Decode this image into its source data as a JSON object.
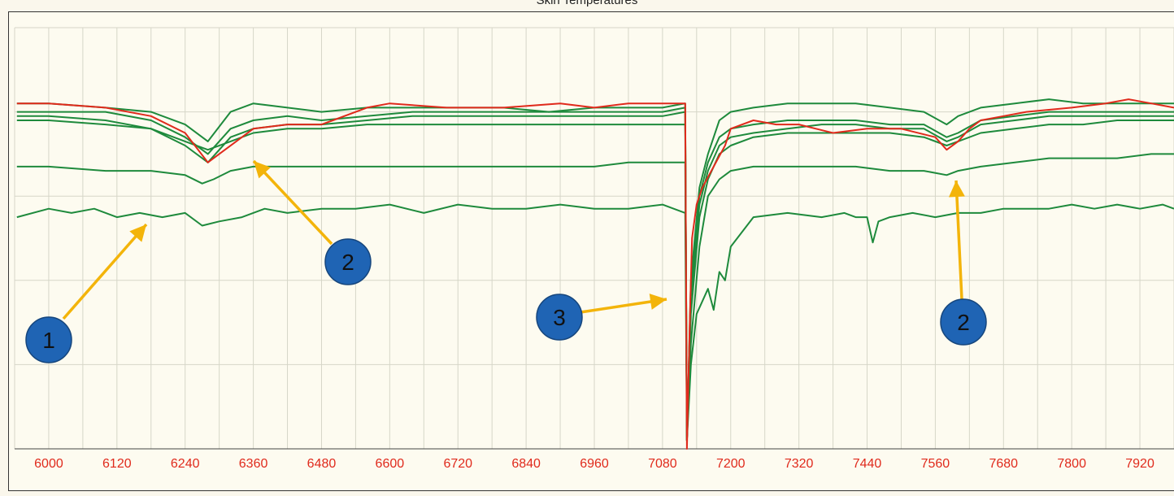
{
  "chart_data": {
    "type": "line",
    "title": "Skin Temperatures",
    "xlabel": "",
    "ylabel": "",
    "xlim": [
      5940,
      7980
    ],
    "ylim": [
      0,
      100
    ],
    "grid": true,
    "x_ticks": [
      6000,
      6120,
      6240,
      6360,
      6480,
      6600,
      6720,
      6840,
      6960,
      7080,
      7200,
      7320,
      7440,
      7560,
      7680,
      7800,
      7920
    ],
    "series": [
      {
        "color": "#e02a1c",
        "x": [
          5944,
          6000,
          6100,
          6180,
          6240,
          6280,
          6300,
          6360,
          6420,
          6480,
          6500,
          6560,
          6600,
          6700,
          6800,
          6900,
          6960,
          7020,
          7080,
          7120,
          7123,
          7128,
          7132,
          7140,
          7150,
          7170,
          7190,
          7200,
          7240,
          7280,
          7320,
          7380,
          7440,
          7500,
          7560,
          7580,
          7600,
          7620,
          7640,
          7680,
          7720,
          7800,
          7860,
          7900,
          7940,
          7980
        ],
        "y": [
          82,
          82,
          81,
          79,
          75,
          68,
          70,
          76,
          77,
          77,
          78,
          81,
          82,
          81,
          81,
          82,
          81,
          82,
          82,
          82,
          0,
          30,
          50,
          58,
          62,
          67,
          72,
          76,
          78,
          77,
          77,
          75,
          76,
          76,
          74,
          71,
          73,
          76,
          78,
          79,
          80,
          81,
          82,
          83,
          82,
          81
        ]
      },
      {
        "color": "#1e8a3c",
        "x": [
          5944,
          6000,
          6100,
          6180,
          6240,
          6280,
          6320,
          6360,
          6420,
          6480,
          6560,
          6640,
          6720,
          6800,
          6880,
          6960,
          7020,
          7080,
          7120,
          7123,
          7130,
          7145,
          7160,
          7180,
          7200,
          7240,
          7300,
          7360,
          7420,
          7480,
          7540,
          7580,
          7600,
          7640,
          7700,
          7760,
          7820,
          7880,
          7940,
          7980
        ],
        "y": [
          82,
          82,
          81,
          80,
          77,
          73,
          80,
          82,
          81,
          80,
          81,
          81,
          81,
          81,
          80,
          81,
          81,
          81,
          82,
          2,
          40,
          62,
          70,
          78,
          80,
          81,
          82,
          82,
          82,
          81,
          80,
          77,
          79,
          81,
          82,
          83,
          82,
          82,
          82,
          82
        ]
      },
      {
        "color": "#1e8a3c",
        "x": [
          5944,
          6000,
          6100,
          6180,
          6240,
          6280,
          6320,
          6360,
          6420,
          6480,
          6560,
          6640,
          6720,
          6800,
          6880,
          6960,
          7020,
          7080,
          7120,
          7123,
          7130,
          7145,
          7160,
          7180,
          7200,
          7240,
          7300,
          7360,
          7420,
          7480,
          7540,
          7580,
          7600,
          7640,
          7700,
          7760,
          7820,
          7880,
          7940,
          7980
        ],
        "y": [
          80,
          80,
          80,
          78,
          74,
          70,
          76,
          78,
          79,
          78,
          79,
          80,
          80,
          80,
          80,
          80,
          80,
          80,
          81,
          2,
          38,
          60,
          68,
          74,
          76,
          77,
          78,
          78,
          78,
          77,
          77,
          74,
          75,
          78,
          79,
          80,
          80,
          80,
          80,
          80
        ]
      },
      {
        "color": "#1e8a3c",
        "x": [
          5944,
          6000,
          6100,
          6180,
          6240,
          6280,
          6320,
          6360,
          6420,
          6480,
          6560,
          6640,
          6720,
          6800,
          6880,
          6960,
          7020,
          7080,
          7120,
          7123,
          7130,
          7145,
          7160,
          7180,
          7200,
          7240,
          7300,
          7360,
          7420,
          7480,
          7540,
          7580,
          7600,
          7640,
          7700,
          7760,
          7820,
          7880,
          7940,
          7980
        ],
        "y": [
          79,
          79,
          78,
          76,
          72,
          68,
          74,
          76,
          77,
          77,
          78,
          79,
          79,
          79,
          79,
          79,
          79,
          79,
          80,
          2,
          36,
          58,
          66,
          72,
          74,
          75,
          76,
          77,
          77,
          76,
          76,
          73,
          74,
          77,
          78,
          79,
          79,
          79,
          79,
          79
        ]
      },
      {
        "color": "#1e8a3c",
        "x": [
          5944,
          6000,
          6100,
          6180,
          6240,
          6280,
          6320,
          6360,
          6420,
          6480,
          6560,
          6640,
          6720,
          6800,
          6880,
          6960,
          7020,
          7080,
          7120,
          7123,
          7130,
          7145,
          7160,
          7180,
          7200,
          7240,
          7300,
          7360,
          7420,
          7480,
          7540,
          7580,
          7600,
          7640,
          7700,
          7760,
          7820,
          7880,
          7940,
          7980
        ],
        "y": [
          78,
          78,
          77,
          76,
          73,
          71,
          73,
          75,
          76,
          76,
          77,
          77,
          77,
          77,
          77,
          77,
          77,
          77,
          77,
          2,
          32,
          55,
          64,
          70,
          72,
          74,
          75,
          75,
          75,
          75,
          74,
          72,
          73,
          75,
          76,
          77,
          77,
          78,
          78,
          78
        ]
      },
      {
        "color": "#1e8a3c",
        "x": [
          5944,
          6000,
          6100,
          6180,
          6240,
          6270,
          6290,
          6320,
          6360,
          6420,
          6480,
          6560,
          6640,
          6720,
          6800,
          6880,
          6960,
          7020,
          7080,
          7120,
          7123,
          7130,
          7145,
          7160,
          7180,
          7200,
          7240,
          7300,
          7360,
          7420,
          7480,
          7540,
          7580,
          7600,
          7640,
          7700,
          7760,
          7820,
          7880,
          7940,
          7980
        ],
        "y": [
          67,
          67,
          66,
          66,
          65,
          63,
          64,
          66,
          67,
          67,
          67,
          67,
          67,
          67,
          67,
          67,
          67,
          68,
          68,
          68,
          2,
          25,
          48,
          60,
          64,
          66,
          67,
          67,
          67,
          67,
          66,
          66,
          65,
          66,
          67,
          68,
          69,
          69,
          69,
          70,
          70
        ]
      },
      {
        "color": "#1e8a3c",
        "x": [
          5944,
          6000,
          6040,
          6080,
          6120,
          6160,
          6200,
          6240,
          6270,
          6300,
          6340,
          6380,
          6420,
          6480,
          6540,
          6600,
          6660,
          6720,
          6780,
          6840,
          6900,
          6960,
          7020,
          7080,
          7120,
          7123,
          7130,
          7140,
          7150,
          7160,
          7170,
          7180,
          7190,
          7200,
          7240,
          7300,
          7360,
          7400,
          7420,
          7440,
          7450,
          7460,
          7480,
          7520,
          7560,
          7600,
          7640,
          7680,
          7720,
          7760,
          7800,
          7840,
          7880,
          7920,
          7960,
          7980
        ],
        "y": [
          55,
          57,
          56,
          57,
          55,
          56,
          55,
          56,
          53,
          54,
          55,
          57,
          56,
          57,
          57,
          58,
          56,
          58,
          57,
          57,
          58,
          57,
          57,
          58,
          56,
          2,
          20,
          32,
          35,
          38,
          33,
          42,
          40,
          48,
          55,
          56,
          55,
          56,
          55,
          55,
          49,
          54,
          55,
          56,
          55,
          56,
          56,
          57,
          57,
          57,
          58,
          57,
          58,
          57,
          58,
          57
        ]
      }
    ]
  },
  "annotations": {
    "callouts": [
      {
        "label": "1"
      },
      {
        "label": "2"
      },
      {
        "label": "3"
      },
      {
        "label": "2"
      }
    ],
    "arrow_color": "#f3b40a",
    "callout_color": "#1f64b4"
  }
}
